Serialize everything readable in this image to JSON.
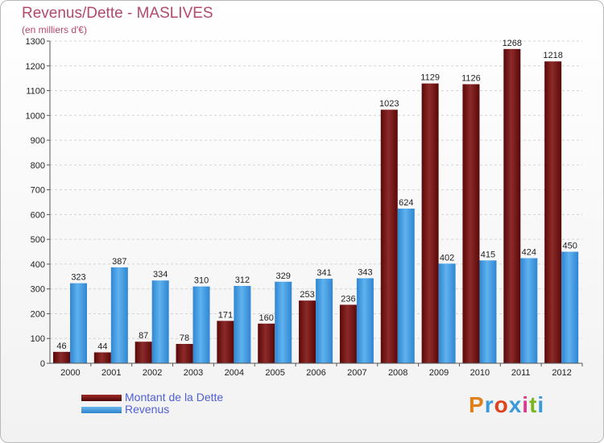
{
  "header": {
    "title": "Revenus/Dette - MASLIVES",
    "subtitle": "(en milliers d'€)"
  },
  "legend": {
    "items": [
      {
        "label": "Montant de la Dette",
        "color": "#7a1010"
      },
      {
        "label": "Revenus",
        "color": "#3f9ae0"
      }
    ]
  },
  "branding": {
    "logo_text": "Proxiti",
    "logo_colors": [
      "#e0801a",
      "#3a9ad9",
      "#e0401a",
      "#3a9ad9",
      "#d63c8c",
      "#7ab51d",
      "#3a9ad9"
    ]
  },
  "chart_data": {
    "type": "bar",
    "title": "Revenus/Dette - MASLIVES",
    "subtitle": "(en milliers d'€)",
    "categories": [
      "2000",
      "2001",
      "2002",
      "2003",
      "2004",
      "2005",
      "2006",
      "2007",
      "2008",
      "2009",
      "2010",
      "2011",
      "2012"
    ],
    "series": [
      {
        "name": "Montant de la Dette",
        "color": "#7a1010",
        "values": [
          46,
          44,
          87,
          78,
          171,
          160,
          253,
          236,
          1023,
          1129,
          1126,
          1268,
          1218
        ]
      },
      {
        "name": "Revenus",
        "color": "#3f9ae0",
        "values": [
          323,
          387,
          334,
          310,
          312,
          329,
          341,
          343,
          624,
          402,
          415,
          424,
          450
        ]
      }
    ],
    "ylim": [
      0,
      1300
    ],
    "yticks": [
      0,
      100,
      200,
      300,
      400,
      500,
      600,
      700,
      800,
      900,
      1000,
      1100,
      1200,
      1300
    ],
    "grid": true,
    "legend_position": "bottom-left"
  }
}
